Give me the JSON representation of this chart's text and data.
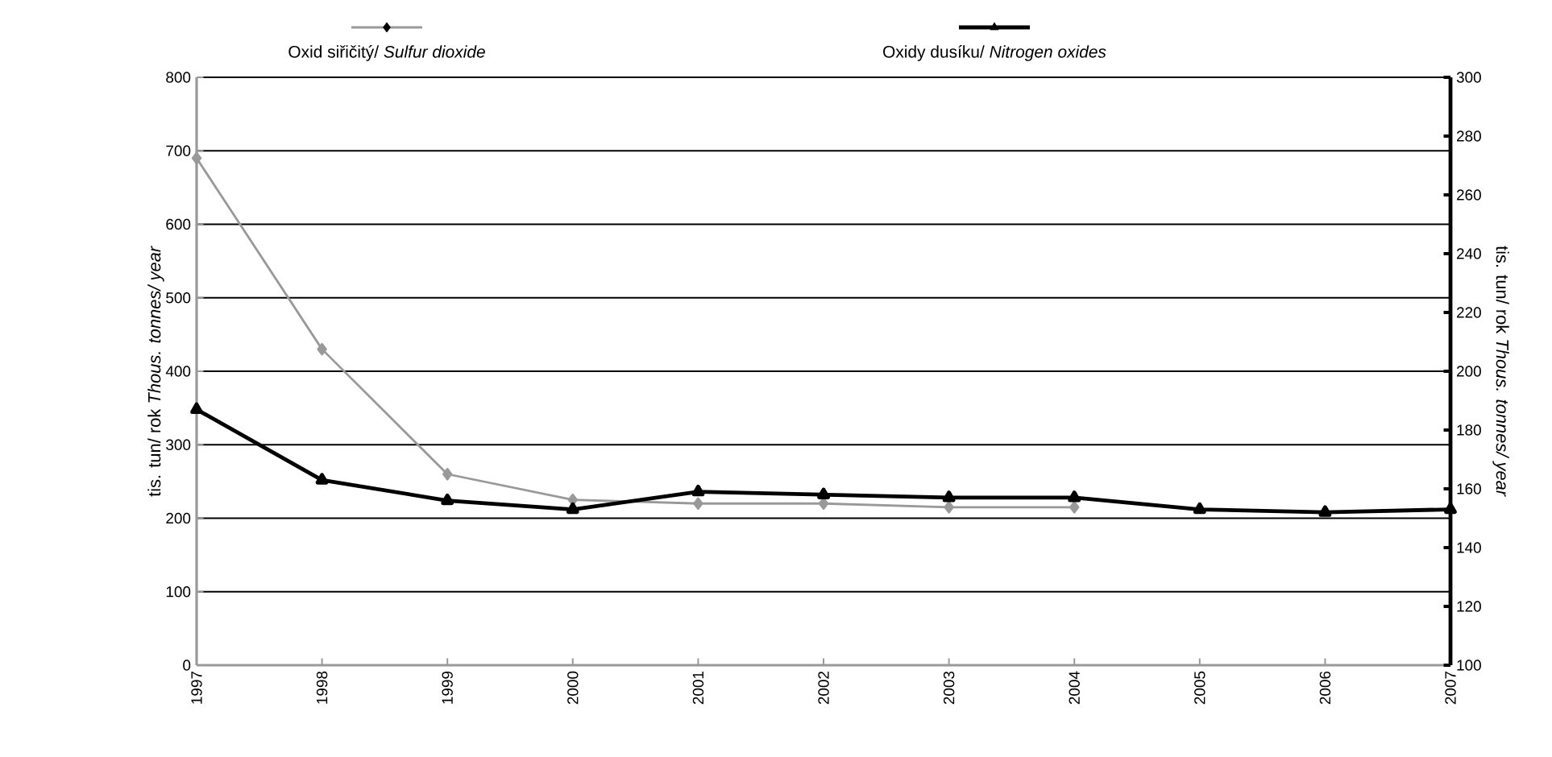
{
  "chart_data": {
    "type": "line",
    "categories": [
      "1997",
      "1998",
      "1999",
      "2000",
      "2001",
      "2002",
      "2003",
      "2004",
      "2005",
      "2006",
      "2007"
    ],
    "series": [
      {
        "name": "Oxid siřičitý/ *Sulfur dioxide*",
        "color": "#999999",
        "marker": "diamond",
        "values": [
          690,
          430,
          260,
          225,
          220,
          220,
          215,
          215,
          null,
          null,
          null
        ]
      },
      {
        "name": "Oxidy dusíku/ *Nitrogen oxides*",
        "color": "#000000",
        "marker": "triangle",
        "axis": "y2",
        "values": [
          187,
          163,
          156,
          153,
          159,
          158,
          157,
          157,
          153,
          152,
          153
        ]
      }
    ],
    "ylabel": "tis. tun/ rok   *Thous. tonnes/ year*",
    "y2label": "tis. tun/ rok   *Thous. tonnes/ year*",
    "ylim": [
      0,
      800
    ],
    "yticks": [
      0,
      100,
      200,
      300,
      400,
      500,
      600,
      700,
      800
    ],
    "y2lim": [
      100,
      300
    ],
    "y2ticks": [
      100,
      120,
      140,
      160,
      180,
      200,
      220,
      240,
      260,
      280,
      300
    ],
    "grid": "y",
    "legend": "top",
    "line_style": "solid"
  }
}
